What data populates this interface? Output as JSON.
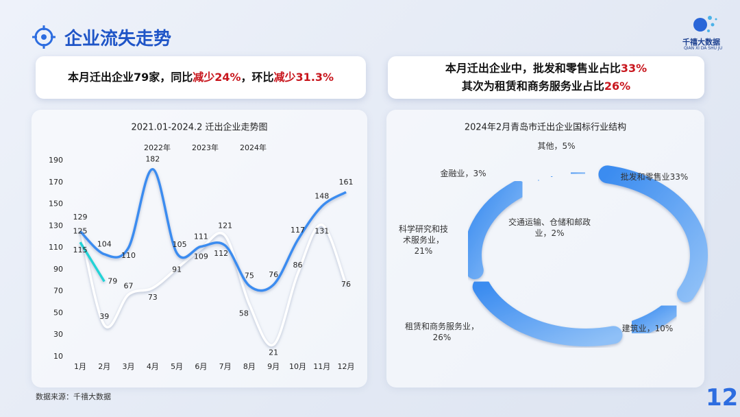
{
  "header": {
    "title": "企业流失走势",
    "logo_name": "千禧大数据",
    "logo_sub": "QIAN XI DA SHU JU"
  },
  "summary_left": [
    {
      "text": "本月迁出企业79家，同比"
    },
    {
      "text": "减少24%",
      "highlight": true
    },
    {
      "text": "，环比"
    },
    {
      "text": "减少31.3%",
      "highlight": true
    }
  ],
  "summary_right": [
    [
      {
        "text": "本月迁出企业中，批发和零售业占比"
      },
      {
        "text": "33%",
        "highlight": true
      }
    ],
    [
      {
        "text": "其次为租赁和商务服务业占比"
      },
      {
        "text": "26%",
        "highlight": true
      }
    ]
  ],
  "footer": {
    "source": "数据来源：千禧大数据",
    "page": "12"
  },
  "chart_data": [
    {
      "type": "line",
      "title": "2021.01-2024.2 迁出企业走势图",
      "categories": [
        "1月",
        "2月",
        "3月",
        "4月",
        "5月",
        "6月",
        "7月",
        "8月",
        "9月",
        "10月",
        "11月",
        "12月"
      ],
      "series": [
        {
          "name": "2022年",
          "color": "#ffffff",
          "values": [
            129,
            39,
            67,
            73,
            91,
            109,
            121,
            58,
            21,
            86,
            131,
            76
          ]
        },
        {
          "name": "2023年",
          "color": "#3b8cf0",
          "values": [
            125,
            104,
            110,
            182,
            105,
            111,
            112,
            75,
            76,
            117,
            148,
            161
          ]
        },
        {
          "name": "2024年",
          "color": "#22d3d6",
          "values": [
            115,
            79,
            null,
            null,
            null,
            null,
            null,
            null,
            null,
            null,
            null,
            null
          ]
        }
      ],
      "ylim": [
        10,
        190
      ],
      "yticks": [
        10,
        30,
        50,
        70,
        90,
        110,
        130,
        150,
        170,
        190
      ],
      "grid": false,
      "legend": "top"
    },
    {
      "type": "donut",
      "title": "2024年2月青岛市迁出企业国标行业结构",
      "color": "#3b8cf0",
      "values": [
        33,
        10,
        26,
        21,
        2,
        3,
        5
      ],
      "value_labels": [
        "批发和零售业33%",
        "建筑业，10%",
        "租赁和商务服务业，26%",
        "科学研究和技术服务业，21%",
        "交通运输、仓储和邮政业，2%",
        "金融业，3%",
        "其他，5%"
      ]
    }
  ]
}
